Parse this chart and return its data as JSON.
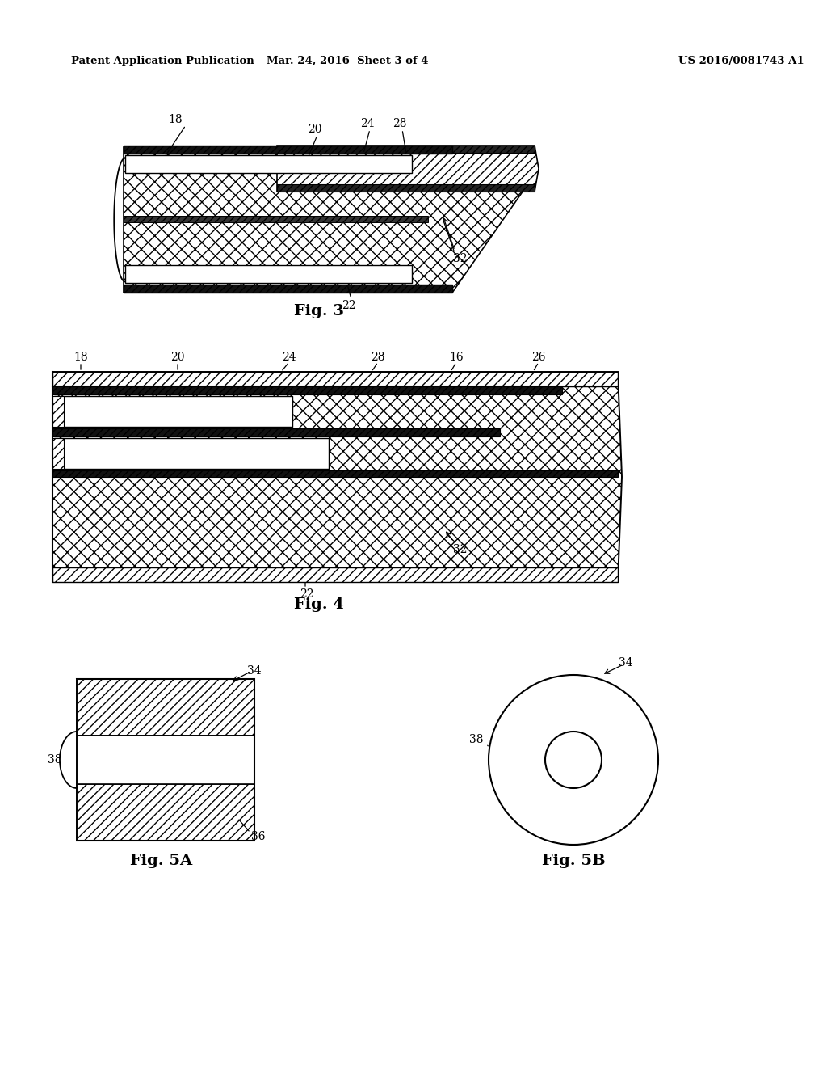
{
  "bg_color": "#ffffff",
  "line_color": "#000000",
  "header_left": "Patent Application Publication",
  "header_mid": "Mar. 24, 2016  Sheet 3 of 4",
  "header_right": "US 2016/0081743 A1",
  "fig3_label": "Fig. 3",
  "fig4_label": "Fig. 4",
  "fig5a_label": "Fig. 5A",
  "fig5b_label": "Fig. 5B"
}
